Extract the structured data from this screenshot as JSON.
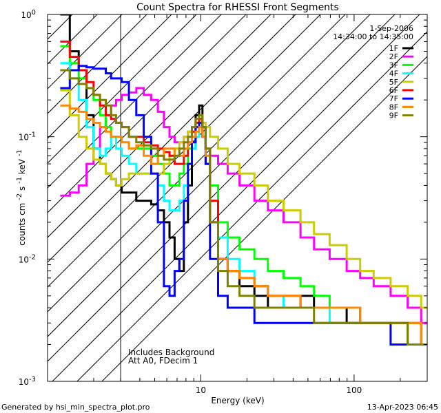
{
  "chart_data": {
    "type": "line",
    "title": "Count Spectra for RHESSI Front Segments",
    "xlabel": "Energy (keV)",
    "ylabel_main": "counts cm",
    "ylabel_exp1": "-2",
    "ylabel_mid": " s",
    "ylabel_exp2": "-1",
    "ylabel_tail": " keV",
    "ylabel_exp3": "-1",
    "xscale": "log",
    "yscale": "log",
    "xlim": [
      1.0,
      300.0
    ],
    "ylim": [
      0.001,
      1.0
    ],
    "x_ticks": [
      {
        "value": 10,
        "label": "10"
      },
      {
        "value": 100,
        "label": "100"
      }
    ],
    "y_ticks": [
      {
        "value": 1.0,
        "mant": "10",
        "exp": "0"
      },
      {
        "value": 0.1,
        "mant": "10",
        "exp": "-1"
      },
      {
        "value": 0.01,
        "mant": "10",
        "exp": "-2"
      },
      {
        "value": 0.001,
        "mant": "10",
        "exp": "-3"
      }
    ],
    "date": "1-Sep-2006",
    "time_range": "14:34:00 to 14:35:00",
    "annotation_line1": "Includes Background",
    "annotation_line2": "Att A0, FDecim 1",
    "footer_left": "Generated by hsi_min_spectra_plot.pro",
    "footer_right": "13-Apr-2023 06:45",
    "hatch_xmax": 3.0,
    "series": [
      {
        "name": "1F",
        "color": "#000000",
        "x": [
          1.3,
          1.5,
          1.7,
          1.9,
          2.1,
          2.3,
          2.5,
          2.7,
          2.9,
          3.2,
          3.6,
          4.0,
          4.5,
          5.0,
          5.5,
          6.0,
          6.5,
          7.0,
          7.5,
          8.0,
          8.5,
          9.0,
          9.5,
          10.0,
          10.5,
          11.0,
          12,
          14,
          16,
          20,
          25,
          30,
          40,
          50,
          60,
          80,
          100,
          120,
          150,
          200,
          250,
          300
        ],
        "y": [
          1.0,
          0.5,
          0.35,
          0.15,
          0.08,
          0.06,
          0.05,
          0.045,
          0.04,
          0.035,
          0.035,
          0.03,
          0.03,
          0.028,
          0.025,
          0.02,
          0.015,
          0.01,
          0.008,
          0.02,
          0.04,
          0.08,
          0.15,
          0.18,
          0.12,
          0.06,
          0.02,
          0.01,
          0.008,
          0.006,
          0.005,
          0.004,
          0.004,
          0.005,
          0.004,
          0.004,
          0.003,
          0.003,
          0.003,
          0.003,
          0.002,
          0.002
        ]
      },
      {
        "name": "2F",
        "color": "#ff00ff",
        "x": [
          1.3,
          1.5,
          1.7,
          1.9,
          2.1,
          2.3,
          2.5,
          2.7,
          2.9,
          3.2,
          3.6,
          4.0,
          4.5,
          5.0,
          5.5,
          6.0,
          6.5,
          7.0,
          7.5,
          8.0,
          8.5,
          9.0,
          9.5,
          10.0,
          10.5,
          11.0,
          12,
          14,
          16,
          20,
          25,
          30,
          40,
          50,
          60,
          80,
          100,
          120,
          150,
          200,
          250,
          300
        ],
        "y": [
          0.033,
          0.035,
          0.04,
          0.06,
          0.08,
          0.12,
          0.15,
          0.18,
          0.2,
          0.22,
          0.23,
          0.25,
          0.22,
          0.2,
          0.16,
          0.12,
          0.1,
          0.09,
          0.09,
          0.1,
          0.11,
          0.12,
          0.13,
          0.12,
          0.1,
          0.08,
          0.07,
          0.06,
          0.05,
          0.04,
          0.03,
          0.025,
          0.02,
          0.015,
          0.012,
          0.01,
          0.008,
          0.007,
          0.006,
          0.005,
          0.004,
          0.003
        ]
      },
      {
        "name": "3F",
        "color": "#00ff00",
        "x": [
          1.3,
          1.5,
          1.7,
          1.9,
          2.1,
          2.3,
          2.5,
          2.7,
          2.9,
          3.2,
          3.6,
          4.0,
          4.5,
          5.0,
          5.5,
          6.0,
          6.5,
          7.0,
          7.5,
          8.0,
          8.5,
          9.0,
          9.5,
          10.0,
          10.5,
          11.0,
          12,
          14,
          16,
          20,
          25,
          30,
          40,
          50,
          60,
          80,
          100,
          120,
          150,
          200,
          250,
          300
        ],
        "y": [
          0.55,
          0.4,
          0.3,
          0.25,
          0.2,
          0.15,
          0.12,
          0.1,
          0.1,
          0.09,
          0.08,
          0.08,
          0.08,
          0.07,
          0.06,
          0.05,
          0.04,
          0.04,
          0.05,
          0.06,
          0.08,
          0.1,
          0.12,
          0.15,
          0.12,
          0.08,
          0.04,
          0.02,
          0.015,
          0.012,
          0.01,
          0.008,
          0.007,
          0.006,
          0.005,
          0.004,
          0.004,
          0.003,
          0.003,
          0.003,
          0.002,
          0.002
        ]
      },
      {
        "name": "4F",
        "color": "#00ffff",
        "x": [
          1.3,
          1.5,
          1.7,
          1.9,
          2.1,
          2.3,
          2.5,
          2.7,
          2.9,
          3.2,
          3.6,
          4.0,
          4.5,
          5.0,
          5.5,
          6.0,
          6.5,
          7.0,
          7.5,
          8.0,
          8.5,
          9.0,
          9.5,
          10.0,
          10.5,
          11.0,
          12,
          14,
          16,
          20,
          25,
          30,
          40,
          50,
          60,
          80,
          100,
          120,
          150,
          200,
          250,
          300
        ],
        "y": [
          0.4,
          0.3,
          0.2,
          0.12,
          0.08,
          0.07,
          0.08,
          0.1,
          0.08,
          0.07,
          0.06,
          0.05,
          0.05,
          0.05,
          0.04,
          0.03,
          0.025,
          0.025,
          0.03,
          0.04,
          0.06,
          0.08,
          0.1,
          0.12,
          0.1,
          0.07,
          0.03,
          0.015,
          0.01,
          0.008,
          0.006,
          0.005,
          0.004,
          0.004,
          0.004,
          0.003,
          0.003,
          0.003,
          0.003,
          0.003,
          0.003,
          0.002
        ]
      },
      {
        "name": "5F",
        "color": "#cccc00",
        "x": [
          1.3,
          1.5,
          1.7,
          1.9,
          2.1,
          2.3,
          2.5,
          2.7,
          2.9,
          3.2,
          3.6,
          4.0,
          4.5,
          5.0,
          5.5,
          6.0,
          6.5,
          7.0,
          7.5,
          8.0,
          8.5,
          9.0,
          9.5,
          10.0,
          10.5,
          11.0,
          12,
          14,
          16,
          20,
          25,
          30,
          40,
          50,
          60,
          80,
          100,
          120,
          150,
          200,
          250,
          300
        ],
        "y": [
          0.24,
          0.15,
          0.1,
          0.08,
          0.065,
          0.06,
          0.05,
          0.045,
          0.04,
          0.045,
          0.05,
          0.05,
          0.05,
          0.05,
          0.05,
          0.06,
          0.07,
          0.08,
          0.09,
          0.1,
          0.11,
          0.12,
          0.13,
          0.14,
          0.13,
          0.12,
          0.1,
          0.08,
          0.06,
          0.05,
          0.04,
          0.03,
          0.025,
          0.02,
          0.016,
          0.013,
          0.01,
          0.008,
          0.007,
          0.006,
          0.005,
          0.004
        ]
      },
      {
        "name": "6F",
        "color": "#ff0000",
        "x": [
          1.3,
          1.5,
          1.7,
          1.9,
          2.1,
          2.3,
          2.5,
          2.7,
          2.9,
          3.2,
          3.6,
          4.0,
          4.5,
          5.0,
          5.5,
          6.0,
          6.5,
          7.0,
          7.5,
          8.0,
          8.5,
          9.0,
          9.5,
          10.0,
          10.5,
          11.0,
          12,
          14,
          16,
          20,
          25,
          30,
          40,
          50,
          60,
          80,
          100,
          120,
          150,
          200,
          250,
          300
        ],
        "y": [
          0.6,
          0.45,
          0.35,
          0.28,
          0.22,
          0.18,
          0.15,
          0.14,
          0.13,
          0.12,
          0.1,
          0.1,
          0.09,
          0.085,
          0.08,
          0.075,
          0.07,
          0.06,
          0.06,
          0.07,
          0.09,
          0.11,
          0.13,
          0.14,
          0.12,
          0.08,
          0.03,
          0.01,
          0.008,
          0.007,
          0.006,
          0.005,
          0.005,
          0.004,
          0.004,
          0.004,
          0.004,
          0.003,
          0.003,
          0.003,
          0.003,
          0.002
        ]
      },
      {
        "name": "7F",
        "color": "#0000ff",
        "x": [
          1.3,
          1.5,
          1.7,
          1.9,
          2.1,
          2.3,
          2.5,
          2.7,
          2.9,
          3.2,
          3.6,
          4.0,
          4.5,
          5.0,
          5.5,
          6.0,
          6.5,
          7.0,
          7.5,
          8.0,
          8.5,
          9.0,
          9.5,
          10.0,
          10.5,
          11.0,
          12,
          14,
          16,
          20,
          25,
          30,
          40,
          50,
          60,
          80,
          100,
          120,
          150,
          200,
          250,
          300
        ],
        "y": [
          0.25,
          0.35,
          0.38,
          0.37,
          0.36,
          0.36,
          0.33,
          0.3,
          0.3,
          0.28,
          0.2,
          0.15,
          0.1,
          0.05,
          0.02,
          0.006,
          0.005,
          0.008,
          0.01,
          0.03,
          0.06,
          0.09,
          0.12,
          0.13,
          0.1,
          0.06,
          0.01,
          0.005,
          0.004,
          0.004,
          0.003,
          0.003,
          0.003,
          0.003,
          0.003,
          0.003,
          0.003,
          0.003,
          0.003,
          0.002,
          0.002,
          0.002
        ]
      },
      {
        "name": "8F",
        "color": "#ff8800",
        "x": [
          1.3,
          1.5,
          1.7,
          1.9,
          2.1,
          2.3,
          2.5,
          2.7,
          2.9,
          3.2,
          3.6,
          4.0,
          4.5,
          5.0,
          5.5,
          6.0,
          6.5,
          7.0,
          7.5,
          8.0,
          8.5,
          9.0,
          9.5,
          10.0,
          10.5,
          11.0,
          12,
          14,
          16,
          20,
          25,
          30,
          40,
          50,
          60,
          80,
          100,
          120,
          150,
          200,
          250,
          300
        ],
        "y": [
          0.18,
          0.17,
          0.16,
          0.14,
          0.13,
          0.12,
          0.11,
          0.1,
          0.1,
          0.09,
          0.08,
          0.085,
          0.07,
          0.06,
          0.07,
          0.08,
          0.08,
          0.07,
          0.07,
          0.08,
          0.09,
          0.1,
          0.11,
          0.12,
          0.1,
          0.07,
          0.02,
          0.01,
          0.008,
          0.007,
          0.006,
          0.005,
          0.005,
          0.004,
          0.004,
          0.004,
          0.004,
          0.003,
          0.003,
          0.003,
          0.003,
          0.002
        ]
      },
      {
        "name": "9F",
        "color": "#808000",
        "x": [
          1.3,
          1.5,
          1.7,
          1.9,
          2.1,
          2.3,
          2.5,
          2.7,
          2.9,
          3.2,
          3.6,
          4.0,
          4.5,
          5.0,
          5.5,
          6.0,
          6.5,
          7.0,
          7.5,
          8.0,
          8.5,
          9.0,
          9.5,
          10.0,
          10.5,
          11.0,
          12,
          14,
          16,
          20,
          25,
          30,
          40,
          50,
          60,
          80,
          100,
          120,
          150,
          200,
          250,
          300
        ],
        "y": [
          0.35,
          0.3,
          0.27,
          0.25,
          0.22,
          0.2,
          0.18,
          0.15,
          0.13,
          0.12,
          0.1,
          0.09,
          0.085,
          0.08,
          0.07,
          0.065,
          0.065,
          0.07,
          0.08,
          0.09,
          0.1,
          0.12,
          0.14,
          0.15,
          0.12,
          0.08,
          0.02,
          0.008,
          0.006,
          0.005,
          0.004,
          0.004,
          0.004,
          0.004,
          0.003,
          0.003,
          0.003,
          0.003,
          0.003,
          0.003,
          0.002,
          0.002
        ]
      }
    ]
  }
}
